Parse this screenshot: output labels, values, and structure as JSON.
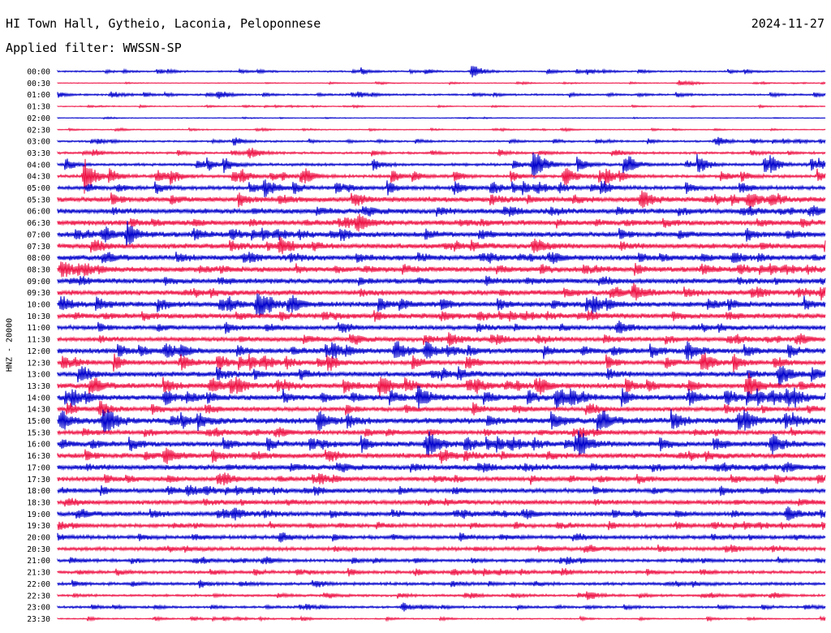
{
  "header": {
    "station": "HI Town Hall, Gytheio, Laconia, Peloponnese",
    "date": "2024-11-27",
    "filter": "Applied filter: WWSSN-SP"
  },
  "colors": {
    "even_trace": "#0000cc",
    "odd_trace": "#ee1144"
  },
  "chart_data": {
    "type": "line",
    "title": "HI Town Hall, Gytheio, Laconia, Peloponnese",
    "subtitle": "Applied filter: WWSSN-SP",
    "ylabel": "HNZ - 20000",
    "xlabel": "",
    "row_labels": [
      "00:00",
      "00:30",
      "01:00",
      "01:30",
      "02:00",
      "02:30",
      "03:00",
      "03:30",
      "04:00",
      "04:30",
      "05:00",
      "05:30",
      "06:00",
      "06:30",
      "07:00",
      "07:30",
      "08:00",
      "08:30",
      "09:00",
      "09:30",
      "10:00",
      "10:30",
      "11:00",
      "11:30",
      "12:00",
      "12:30",
      "13:00",
      "13:30",
      "14:00",
      "14:30",
      "15:00",
      "15:30",
      "16:00",
      "16:30",
      "17:00",
      "17:30",
      "18:00",
      "18:30",
      "19:00",
      "19:30",
      "20:00",
      "20:30",
      "21:00",
      "21:30",
      "22:00",
      "22:30",
      "23:00",
      "23:30"
    ],
    "series": [
      {
        "values": [
          1.0,
          4.5
        ]
      },
      {
        "values": [
          0.5,
          1.8
        ]
      },
      {
        "values": [
          1.2,
          4.0
        ]
      },
      {
        "values": [
          0.6,
          1.6
        ]
      },
      {
        "values": [
          0.6,
          1.2
        ]
      },
      {
        "values": [
          0.6,
          2.0
        ]
      },
      {
        "values": [
          1.2,
          3.5
        ]
      },
      {
        "values": [
          1.5,
          4.5
        ]
      },
      {
        "values": [
          1.8,
          15.0
        ]
      },
      {
        "values": [
          2.0,
          12.0
        ]
      },
      {
        "values": [
          2.5,
          10.0
        ]
      },
      {
        "values": [
          3.5,
          9.0
        ]
      },
      {
        "values": [
          3.5,
          6.0
        ]
      },
      {
        "values": [
          3.5,
          6.0
        ]
      },
      {
        "values": [
          3.5,
          8.0
        ]
      },
      {
        "values": [
          3.5,
          9.0
        ]
      },
      {
        "values": [
          3.5,
          7.0
        ]
      },
      {
        "values": [
          3.5,
          7.0
        ]
      },
      {
        "values": [
          3.5,
          5.0
        ]
      },
      {
        "values": [
          3.5,
          7.0
        ]
      },
      {
        "values": [
          3.5,
          12.0
        ]
      },
      {
        "values": [
          3.5,
          6.0
        ]
      },
      {
        "values": [
          3.0,
          7.0
        ]
      },
      {
        "values": [
          3.0,
          7.0
        ]
      },
      {
        "values": [
          3.5,
          11.0
        ]
      },
      {
        "values": [
          3.0,
          12.0
        ]
      },
      {
        "values": [
          3.5,
          12.0
        ]
      },
      {
        "values": [
          3.5,
          12.0
        ]
      },
      {
        "values": [
          3.5,
          12.0
        ]
      },
      {
        "values": [
          3.0,
          8.0
        ]
      },
      {
        "values": [
          4.0,
          16.0
        ]
      },
      {
        "values": [
          3.0,
          6.0
        ]
      },
      {
        "values": [
          3.5,
          11.0
        ]
      },
      {
        "values": [
          3.5,
          8.0
        ]
      },
      {
        "values": [
          3.5,
          5.5
        ]
      },
      {
        "values": [
          3.0,
          7.0
        ]
      },
      {
        "values": [
          3.0,
          5.5
        ]
      },
      {
        "values": [
          3.0,
          5.0
        ]
      },
      {
        "values": [
          3.0,
          6.0
        ]
      },
      {
        "values": [
          2.5,
          5.0
        ]
      },
      {
        "values": [
          2.5,
          5.0
        ]
      },
      {
        "values": [
          2.5,
          5.0
        ]
      },
      {
        "values": [
          2.0,
          5.0
        ]
      },
      {
        "values": [
          2.0,
          5.0
        ]
      },
      {
        "values": [
          2.0,
          5.0
        ]
      },
      {
        "values": [
          1.5,
          4.0
        ]
      },
      {
        "values": [
          1.5,
          4.0
        ]
      },
      {
        "values": [
          0.8,
          3.0
        ]
      }
    ],
    "events": [
      {
        "row": 0,
        "x": 0.54,
        "a": 4.5
      },
      {
        "row": 1,
        "x": 0.81,
        "a": 4.0
      },
      {
        "row": 2,
        "x": 0.07,
        "a": 4.0
      },
      {
        "row": 2,
        "x": 0.21,
        "a": 5.0
      },
      {
        "row": 6,
        "x": 0.23,
        "a": 3.5
      },
      {
        "row": 6,
        "x": 0.86,
        "a": 3.5
      },
      {
        "row": 7,
        "x": 0.25,
        "a": 7.0
      },
      {
        "row": 8,
        "x": 0.62,
        "a": 20.0
      },
      {
        "row": 8,
        "x": 0.82,
        "a": 4.0
      },
      {
        "row": 9,
        "x": 0.035,
        "a": 22.0
      },
      {
        "row": 9,
        "x": 0.13,
        "a": 8.0
      },
      {
        "row": 9,
        "x": 0.66,
        "a": 9.0
      },
      {
        "row": 10,
        "x": 0.27,
        "a": 11.0
      },
      {
        "row": 11,
        "x": 0.76,
        "a": 11.0
      },
      {
        "row": 11,
        "x": 0.9,
        "a": 9.0
      },
      {
        "row": 11,
        "x": 0.93,
        "a": 8.0
      },
      {
        "row": 13,
        "x": 0.39,
        "a": 8.0
      },
      {
        "row": 14,
        "x": 0.06,
        "a": 9.0
      },
      {
        "row": 14,
        "x": 0.09,
        "a": 8.0
      },
      {
        "row": 15,
        "x": 0.29,
        "a": 11.0
      },
      {
        "row": 15,
        "x": 0.62,
        "a": 9.0
      },
      {
        "row": 16,
        "x": 0.88,
        "a": 7.0
      },
      {
        "row": 17,
        "x": 0.005,
        "a": 11.0
      },
      {
        "row": 19,
        "x": 0.75,
        "a": 9.0
      },
      {
        "row": 19,
        "x": 0.995,
        "a": 7.0
      },
      {
        "row": 20,
        "x": 0.005,
        "a": 9.0
      },
      {
        "row": 20,
        "x": 0.26,
        "a": 15.0
      },
      {
        "row": 22,
        "x": 0.73,
        "a": 8.0
      },
      {
        "row": 23,
        "x": 0.51,
        "a": 8.0
      },
      {
        "row": 24,
        "x": 0.14,
        "a": 9.0
      },
      {
        "row": 24,
        "x": 0.44,
        "a": 13.0
      },
      {
        "row": 24,
        "x": 0.48,
        "a": 10.0
      },
      {
        "row": 24,
        "x": 0.82,
        "a": 11.0
      },
      {
        "row": 25,
        "x": 0.84,
        "a": 13.0
      },
      {
        "row": 26,
        "x": 0.94,
        "a": 13.0
      },
      {
        "row": 27,
        "x": 0.2,
        "a": 9.0
      },
      {
        "row": 27,
        "x": 0.42,
        "a": 13.0
      },
      {
        "row": 27,
        "x": 0.9,
        "a": 11.0
      },
      {
        "row": 28,
        "x": 0.14,
        "a": 8.0
      },
      {
        "row": 28,
        "x": 0.47,
        "a": 14.0
      },
      {
        "row": 28,
        "x": 0.65,
        "a": 14.0
      },
      {
        "row": 28,
        "x": 0.95,
        "a": 9.0
      },
      {
        "row": 29,
        "x": 0.055,
        "a": 9.0
      },
      {
        "row": 30,
        "x": 0.005,
        "a": 12.0
      },
      {
        "row": 30,
        "x": 0.06,
        "a": 20.0
      },
      {
        "row": 30,
        "x": 0.34,
        "a": 12.0
      },
      {
        "row": 32,
        "x": 0.48,
        "a": 10.0
      },
      {
        "row": 32,
        "x": 0.68,
        "a": 11.0
      },
      {
        "row": 32,
        "x": 0.93,
        "a": 13.0
      },
      {
        "row": 33,
        "x": 0.14,
        "a": 10.0
      },
      {
        "row": 33,
        "x": 0.5,
        "a": 7.0
      },
      {
        "row": 35,
        "x": 0.21,
        "a": 7.0
      },
      {
        "row": 36,
        "x": 0.17,
        "a": 6.0
      },
      {
        "row": 38,
        "x": 0.23,
        "a": 6.0
      },
      {
        "row": 38,
        "x": 0.95,
        "a": 7.0
      },
      {
        "row": 40,
        "x": 0.29,
        "a": 6.0
      },
      {
        "row": 45,
        "x": 0.69,
        "a": 5.0
      },
      {
        "row": 46,
        "x": 0.45,
        "a": 5.0
      }
    ]
  }
}
